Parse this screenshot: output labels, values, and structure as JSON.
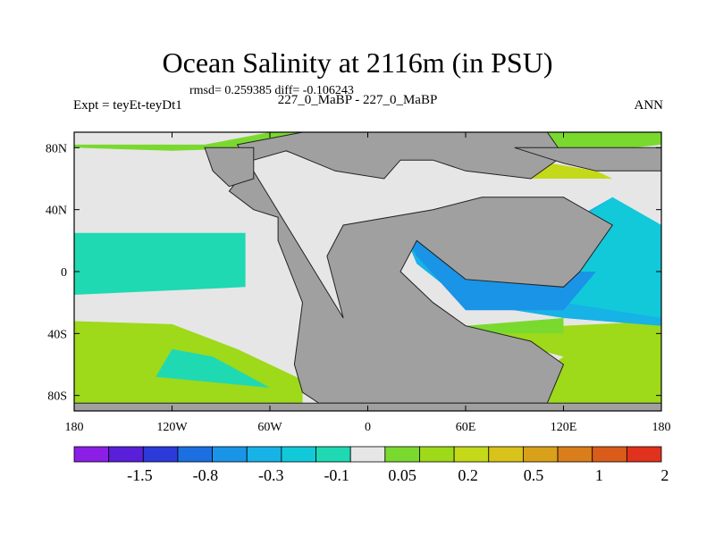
{
  "title": "Ocean Salinity at 2116m (in PSU)",
  "stats": "rmsd= 0.259385 diff= -0.106243",
  "left_label": "Expt = teyEt-teyDt1",
  "center_label": "227_0_MaBP - 227_0_MaBP",
  "right_label": "ANN",
  "chart_data": {
    "type": "heatmap",
    "projection": "cylindrical-equidistant",
    "lon_range": [
      -180,
      180
    ],
    "lat_range": [
      -90,
      90
    ],
    "x_ticks": [
      {
        "value": -180,
        "label": "180"
      },
      {
        "value": -120,
        "label": "120W"
      },
      {
        "value": -60,
        "label": "60W"
      },
      {
        "value": 0,
        "label": "0"
      },
      {
        "value": 60,
        "label": "60E"
      },
      {
        "value": 120,
        "label": "120E"
      },
      {
        "value": 180,
        "label": "180"
      }
    ],
    "y_ticks": [
      {
        "value": 80,
        "label": "80N"
      },
      {
        "value": 40,
        "label": "40N"
      },
      {
        "value": 0,
        "label": "0"
      },
      {
        "value": -40,
        "label": "40S"
      },
      {
        "value": -80,
        "label": "80S"
      }
    ],
    "colorbar": {
      "colors": [
        "#8c1fe6",
        "#5a1fd9",
        "#2c3ad9",
        "#1c6fe0",
        "#1a94e6",
        "#17b2e6",
        "#12c9d9",
        "#1fd9b3",
        "#e6e6e6",
        "#7ad92e",
        "#9ed91a",
        "#c4d91a",
        "#d9c21a",
        "#d9a11a",
        "#d97e1a",
        "#d95c1a",
        "#e0321c"
      ],
      "labels": [
        {
          "boundary": 2,
          "text": "-1.5"
        },
        {
          "boundary": 4,
          "text": "-0.8"
        },
        {
          "boundary": 6,
          "text": "-0.3"
        },
        {
          "boundary": 8,
          "text": "-0.1"
        },
        {
          "boundary": 10,
          "text": "0.05"
        },
        {
          "boundary": 12,
          "text": "0.2"
        },
        {
          "boundary": 14,
          "text": "0.5"
        },
        {
          "boundary": 16,
          "text": "1"
        },
        {
          "boundary": 18,
          "text": "2"
        }
      ]
    },
    "land_color": "#a0a0a0",
    "regions": [
      {
        "name": "arctic-green",
        "color": "#7ad92e",
        "lonlat": [
          [
            -180,
            82
          ],
          [
            -100,
            82
          ],
          [
            -60,
            90
          ],
          [
            180,
            90
          ],
          [
            180,
            82
          ],
          [
            120,
            75
          ],
          [
            80,
            72
          ],
          [
            40,
            78
          ],
          [
            0,
            70
          ],
          [
            -30,
            72
          ],
          [
            -60,
            80
          ],
          [
            -120,
            78
          ],
          [
            -180,
            80
          ]
        ]
      },
      {
        "name": "north-pacific-teal",
        "color": "#1fd9b3",
        "lonlat": [
          [
            -180,
            25
          ],
          [
            -75,
            25
          ],
          [
            -75,
            -10
          ],
          [
            -180,
            -15
          ]
        ]
      },
      {
        "name": "south-pacific-green",
        "color": "#9ed91a",
        "lonlat": [
          [
            -180,
            -32
          ],
          [
            -120,
            -34
          ],
          [
            -80,
            -50
          ],
          [
            -40,
            -70
          ],
          [
            -40,
            -85
          ],
          [
            -180,
            -85
          ]
        ]
      },
      {
        "name": "south-ocean-teal",
        "color": "#1fd9b3",
        "lonlat": [
          [
            -120,
            -50
          ],
          [
            -95,
            -55
          ],
          [
            -60,
            -75
          ],
          [
            -130,
            -68
          ]
        ]
      },
      {
        "name": "south-atlantic-green",
        "color": "#9ed91a",
        "lonlat": [
          [
            60,
            -38
          ],
          [
            180,
            -32
          ],
          [
            180,
            -85
          ],
          [
            40,
            -85
          ],
          [
            40,
            -60
          ],
          [
            100,
            -70
          ],
          [
            120,
            -55
          ]
        ]
      },
      {
        "name": "north-atlantic-cyan",
        "color": "#17b2e6",
        "lonlat": [
          [
            20,
            30
          ],
          [
            120,
            30
          ],
          [
            150,
            48
          ],
          [
            180,
            30
          ],
          [
            180,
            -35
          ],
          [
            120,
            -30
          ],
          [
            60,
            -20
          ],
          [
            30,
            5
          ]
        ]
      },
      {
        "name": "north-atlantic-teal",
        "color": "#12c9d9",
        "lonlat": [
          [
            110,
            20
          ],
          [
            150,
            48
          ],
          [
            180,
            30
          ],
          [
            180,
            -30
          ],
          [
            120,
            -20
          ]
        ]
      },
      {
        "name": "tethys-blue",
        "color": "#1a94e6",
        "lonlat": [
          [
            20,
            30
          ],
          [
            40,
            30
          ],
          [
            80,
            0
          ],
          [
            140,
            0
          ],
          [
            120,
            -25
          ],
          [
            60,
            -25
          ],
          [
            30,
            10
          ]
        ]
      },
      {
        "name": "deep-blue",
        "color": "#2c3ad9",
        "lonlat": [
          [
            35,
            30
          ],
          [
            75,
            45
          ],
          [
            88,
            40
          ],
          [
            92,
            25
          ],
          [
            35,
            25
          ]
        ]
      },
      {
        "name": "green-band",
        "color": "#7ad92e",
        "lonlat": [
          [
            60,
            -35
          ],
          [
            120,
            -30
          ],
          [
            120,
            -40
          ],
          [
            60,
            -40
          ]
        ]
      },
      {
        "name": "gold-patch",
        "color": "#d9c21a",
        "lonlat": [
          [
            30,
            -80
          ],
          [
            40,
            -75
          ],
          [
            100,
            -80
          ],
          [
            30,
            -85
          ]
        ]
      },
      {
        "name": "north-atlantic-gold",
        "color": "#c4d91a",
        "lonlat": [
          [
            100,
            72
          ],
          [
            140,
            65
          ],
          [
            150,
            60
          ],
          [
            100,
            60
          ]
        ]
      }
    ],
    "land": [
      {
        "name": "pangaea-main",
        "lonlat": [
          [
            -80,
            82
          ],
          [
            -40,
            90
          ],
          [
            110,
            90
          ],
          [
            120,
            75
          ],
          [
            100,
            60
          ],
          [
            60,
            65
          ],
          [
            40,
            72
          ],
          [
            20,
            72
          ],
          [
            10,
            60
          ],
          [
            -20,
            65
          ],
          [
            -50,
            78
          ],
          [
            -70,
            72
          ],
          [
            -85,
            52
          ],
          [
            -70,
            40
          ],
          [
            -55,
            35
          ],
          [
            -55,
            20
          ],
          [
            -40,
            -20
          ],
          [
            -45,
            -60
          ],
          [
            -40,
            -78
          ],
          [
            -30,
            -85
          ],
          [
            110,
            -85
          ],
          [
            120,
            -60
          ],
          [
            100,
            -45
          ],
          [
            60,
            -35
          ],
          [
            40,
            -20
          ],
          [
            20,
            0
          ],
          [
            30,
            20
          ],
          [
            60,
            -5
          ],
          [
            120,
            -10
          ],
          [
            130,
            0
          ],
          [
            150,
            30
          ],
          [
            120,
            48
          ],
          [
            70,
            48
          ],
          [
            40,
            40
          ],
          [
            -15,
            30
          ],
          [
            -25,
            10
          ],
          [
            -15,
            -30
          ]
        ]
      },
      {
        "name": "north-america-west",
        "lonlat": [
          [
            -100,
            80
          ],
          [
            -70,
            80
          ],
          [
            -70,
            60
          ],
          [
            -85,
            55
          ],
          [
            -95,
            65
          ]
        ]
      },
      {
        "name": "north-europe",
        "lonlat": [
          [
            90,
            80
          ],
          [
            180,
            80
          ],
          [
            180,
            65
          ],
          [
            140,
            65
          ],
          [
            120,
            70
          ]
        ]
      },
      {
        "name": "antarctic-strip",
        "lonlat": [
          [
            -180,
            -85
          ],
          [
            180,
            -85
          ],
          [
            180,
            -90
          ],
          [
            -180,
            -90
          ]
        ]
      }
    ]
  }
}
